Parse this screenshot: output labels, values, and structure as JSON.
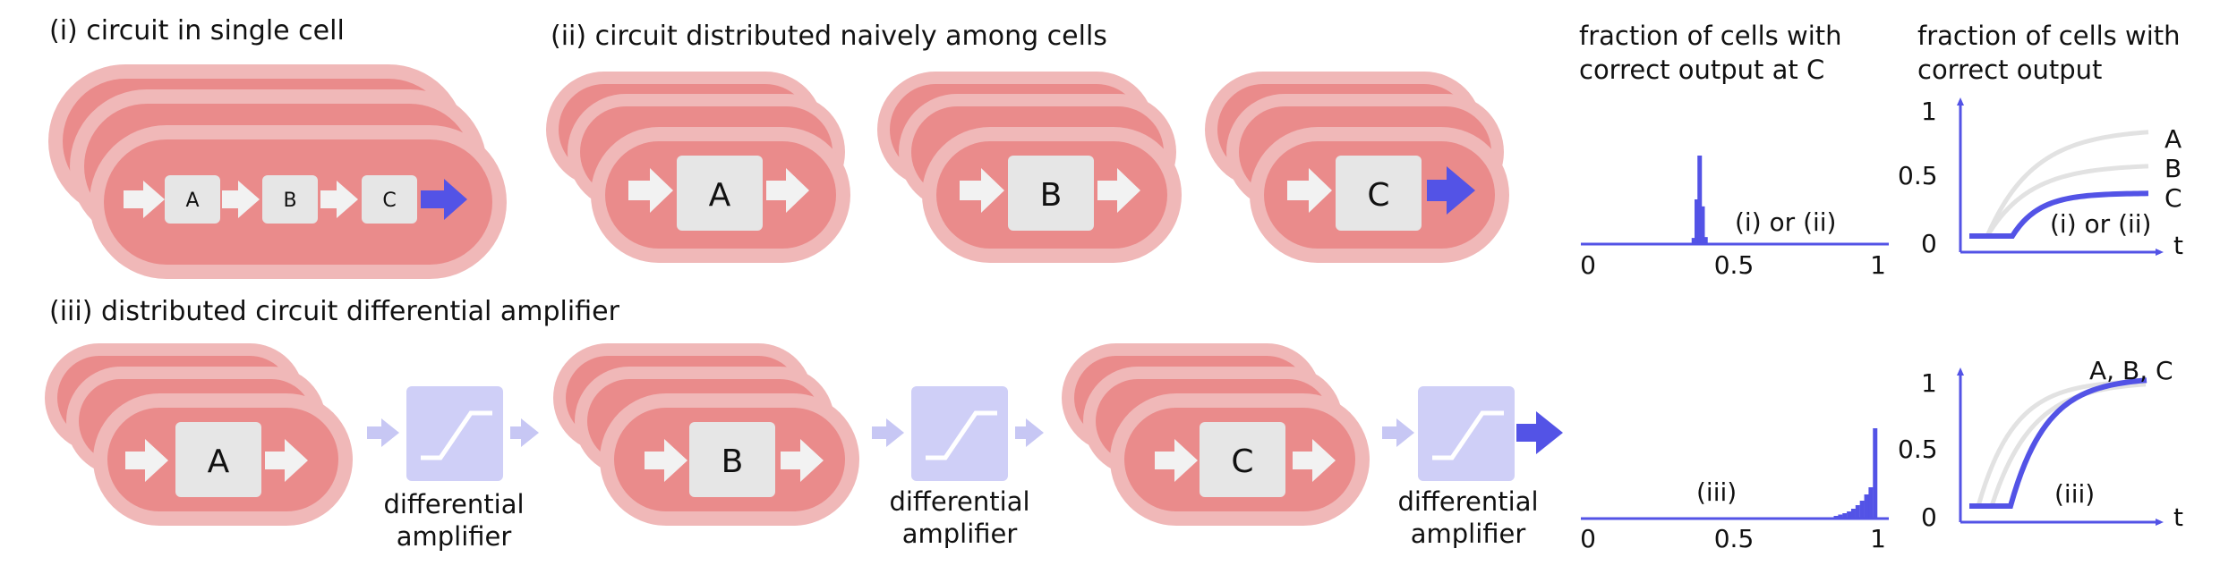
{
  "titles": {
    "i": "(i) circuit in single cell",
    "ii": "(ii) circuit distributed naively among cells",
    "iii": "(iii) distributed circuit  differential amplifier"
  },
  "nodes": {
    "a": "A",
    "b": "B",
    "c": "C"
  },
  "amp_label": [
    "differential",
    "amplifier"
  ],
  "hist_top": {
    "title": [
      "fraction of cells with",
      "correct output at C"
    ],
    "annotation": "(i) or (ii)",
    "ticks": [
      "0",
      "0.5",
      "1"
    ],
    "bars": [
      {
        "x": 0.365,
        "h": 0.06
      },
      {
        "x": 0.375,
        "h": 0.5
      },
      {
        "x": 0.385,
        "h": 1.0
      },
      {
        "x": 0.395,
        "h": 0.42
      },
      {
        "x": 0.405,
        "h": 0.07
      }
    ]
  },
  "hist_bottom": {
    "annotation": "(iii)",
    "ticks": [
      "0",
      "0.5",
      "1"
    ],
    "bars": [
      {
        "x": 0.855,
        "h": 0.02
      },
      {
        "x": 0.87,
        "h": 0.035
      },
      {
        "x": 0.885,
        "h": 0.05
      },
      {
        "x": 0.9,
        "h": 0.07
      },
      {
        "x": 0.915,
        "h": 0.1
      },
      {
        "x": 0.93,
        "h": 0.14
      },
      {
        "x": 0.945,
        "h": 0.19
      },
      {
        "x": 0.96,
        "h": 0.26
      },
      {
        "x": 0.975,
        "h": 0.34
      },
      {
        "x": 0.99,
        "h": 1.0
      }
    ]
  },
  "curves_top": {
    "title": [
      "fraction of cells with",
      "correct output"
    ],
    "annotation": "(i) or (ii)",
    "yticks": [
      "1",
      "0.5",
      "0"
    ],
    "xlabel": "t",
    "series_labels": [
      "A",
      "B",
      "C"
    ],
    "plateaus": [
      0.8,
      0.55,
      0.35
    ]
  },
  "curves_bottom": {
    "annotation": "(iii)",
    "yticks": [
      "1",
      "0.5",
      "0"
    ],
    "xlabel": "t",
    "series_label": "A, B, C",
    "plateau": 0.95
  },
  "colors": {
    "cell_outer": "#f0b8b8",
    "cell_inner": "#ea8b8b",
    "node": "#e6e6e6",
    "arrow_light": "#f2f2f2",
    "accent": "#5353e6",
    "amp_box": "#cfcff7",
    "amp_arrow": "#c7c7f4",
    "gray_curve": "#e2e2e2"
  }
}
